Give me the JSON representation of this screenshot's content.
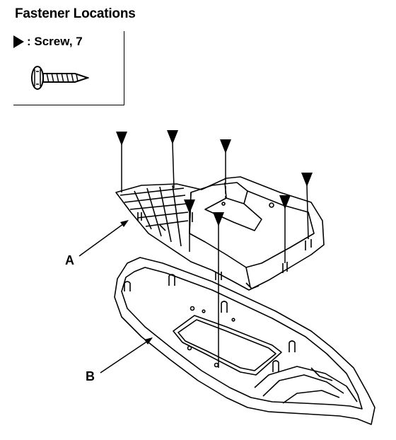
{
  "title": "Fastener Locations",
  "legend": {
    "symbol_icon": "triangle-pointer-icon",
    "text": ": Screw, 7",
    "screw_icon": "screw-icon"
  },
  "labels": {
    "a": "A",
    "b": "B"
  },
  "screw_count": 7
}
